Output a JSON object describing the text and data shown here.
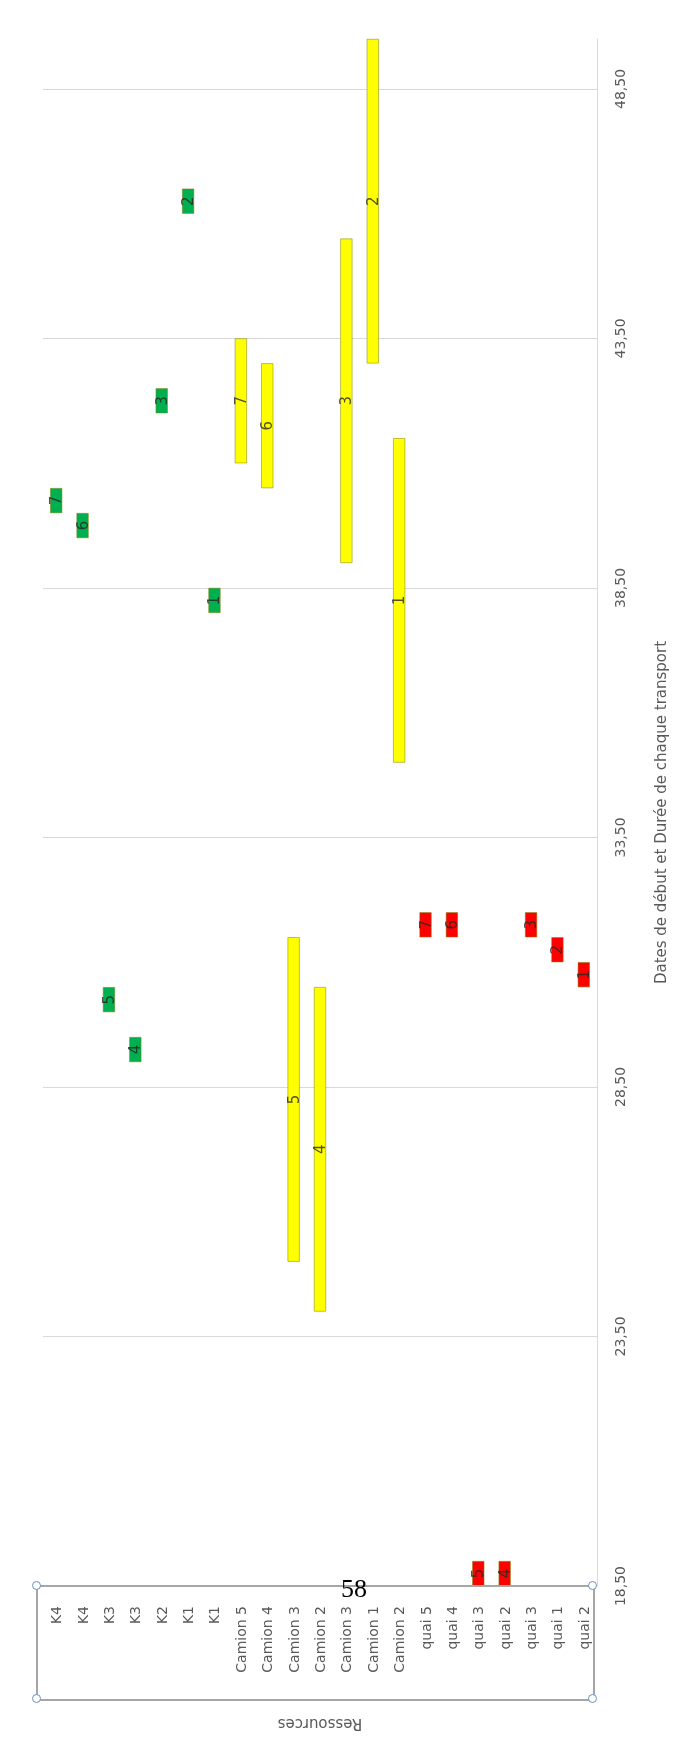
{
  "chart_data": {
    "type": "bar",
    "xlabel": "Ressources",
    "ylabel": "Dates de début et Durée de chaque transport",
    "categories": [
      "K4",
      "K4",
      "K3",
      "K3",
      "K2",
      "K1",
      "K1",
      "Camion 5",
      "Camion 4",
      "Camion 3",
      "Camion 2",
      "Camion 3",
      "Camion 1",
      "Camion 2",
      "quai 5",
      "quai 4",
      "quai 3",
      "quai 2",
      "quai 3",
      "quai 1",
      "quai 2"
    ],
    "base": [
      40,
      39.5,
      30,
      29,
      42,
      46,
      38,
      41,
      40.5,
      25,
      24,
      39,
      43,
      35,
      31.5,
      31.5,
      18.5,
      18.5,
      31.5,
      31,
      30.5
    ],
    "values": [
      0.5,
      0.5,
      0.5,
      0.5,
      0.5,
      0.5,
      0.5,
      2.5,
      2.5,
      6.5,
      6.5,
      6.5,
      6.5,
      6.5,
      0.5,
      0.5,
      0.5,
      0.5,
      0.5,
      0.5,
      0.5
    ],
    "colors": [
      "#00b050",
      "#00b050",
      "#00b050",
      "#00b050",
      "#00b050",
      "#00b050",
      "#00b050",
      "#ffff00",
      "#ffff00",
      "#ffff00",
      "#ffff00",
      "#ffff00",
      "#ffff00",
      "#ffff00",
      "#ff0000",
      "#ff0000",
      "#ff0000",
      "#ff0000",
      "#ff0000",
      "#ff0000",
      "#ff0000"
    ],
    "ylim": [
      18.5,
      49.5
    ],
    "yticks": [
      {
        "value": 18.5,
        "label": "18,50"
      },
      {
        "value": 23.5,
        "label": "23,50"
      },
      {
        "value": 28.5,
        "label": "28,50"
      },
      {
        "value": 33.5,
        "label": "33,50"
      },
      {
        "value": 38.5,
        "label": "38,50"
      },
      {
        "value": 43.5,
        "label": "43,50"
      },
      {
        "value": 48.5,
        "label": "48,50"
      }
    ],
    "grid": "y",
    "annotations": [
      "7",
      "6",
      "5",
      "4",
      "3",
      "2",
      "1",
      "7",
      "6",
      "5",
      "4",
      "3",
      "2",
      "1",
      "7",
      "6",
      "5",
      "4",
      "3",
      "2",
      "1",
      "58"
    ]
  }
}
